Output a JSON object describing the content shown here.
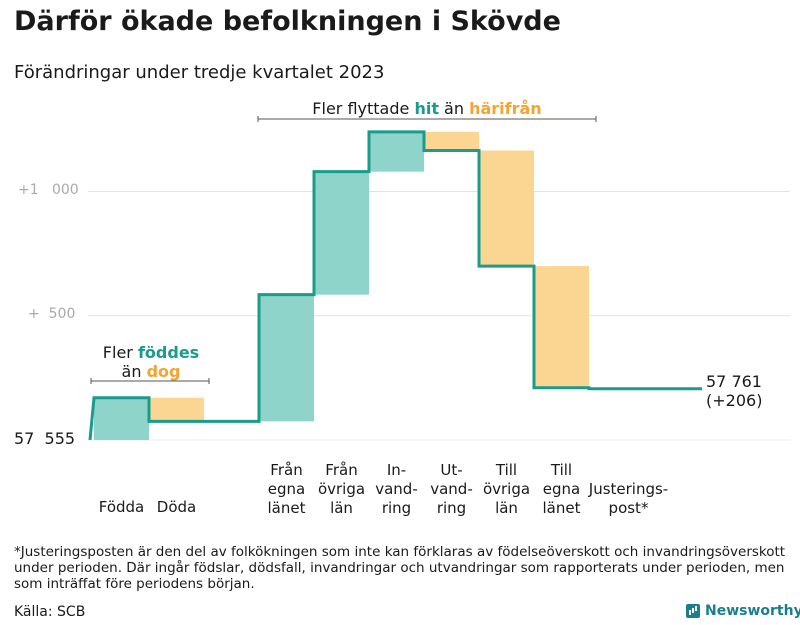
{
  "title": "Därför ökade befolkningen i Skövde",
  "subtitle": "Förändringar under tredje kvartalet 2023",
  "chart_data": {
    "type": "waterfall",
    "title": "Därför ökade befolkningen i Skövde",
    "subtitle": "Förändringar under tredje kvartalet 2023",
    "start_value": 57555,
    "start_label": "57  555",
    "end_value": 57761,
    "end_label_line1": "57 761",
    "end_label_line2": "(+206)",
    "y_ticks": [
      {
        "label": "+  500",
        "offset": 500
      },
      {
        "label": "+1   000",
        "offset": 1000
      }
    ],
    "steps": [
      {
        "label_lines": [
          "Födda"
        ],
        "change": 170,
        "kind": "inflow"
      },
      {
        "label_lines": [
          "Döda"
        ],
        "change": -95,
        "kind": "outflow"
      },
      {
        "label_lines": [
          "",
          "",
          ""
        ],
        "change": 0,
        "kind": "gap"
      },
      {
        "label_lines": [
          "Från",
          "egna",
          "länet"
        ],
        "change": 510,
        "kind": "inflow"
      },
      {
        "label_lines": [
          "Från",
          "övriga",
          "län"
        ],
        "change": 495,
        "kind": "inflow"
      },
      {
        "label_lines": [
          "In-",
          "vand-",
          "ring"
        ],
        "change": 160,
        "kind": "inflow"
      },
      {
        "label_lines": [
          "Ut-",
          "vand-",
          "ring"
        ],
        "change": -75,
        "kind": "outflow"
      },
      {
        "label_lines": [
          "Till",
          "övriga",
          "län"
        ],
        "change": -465,
        "kind": "outflow"
      },
      {
        "label_lines": [
          "Till",
          "egna",
          "länet"
        ],
        "change": -490,
        "kind": "outflow"
      },
      {
        "label_lines": [
          "Justerings-",
          "post*"
        ],
        "change": -4,
        "kind": "adjustment"
      }
    ],
    "ylim": [
      0,
      1300
    ],
    "colors": {
      "inflow": "#8ed4ca",
      "outflow": "#fbd693",
      "line": "#1a9c8c",
      "grid": "#e3e3e3",
      "axis_text": "#aaaaaa"
    },
    "annotations": {
      "births": {
        "line1": "Fler ",
        "line1_bold": "föddes",
        "line2": "än ",
        "line2_bold": "dog"
      },
      "moves": {
        "prefix": "Fler flyttade ",
        "bold1": "hit",
        "middle": " än ",
        "bold2": "härifrån"
      }
    }
  },
  "footnote": "*Justeringsposten är den del av folkökningen som inte kan förklaras av födelseöverskott och invandringsöverskott under perioden. Där ingår födslar, dödsfall, invandringar och utvandringar som rapporterats under perioden, men som inträffat före periodens början.",
  "source": "Källa: SCB",
  "brand": "Newsworthy",
  "brand_icon": "bar-chart-icon"
}
